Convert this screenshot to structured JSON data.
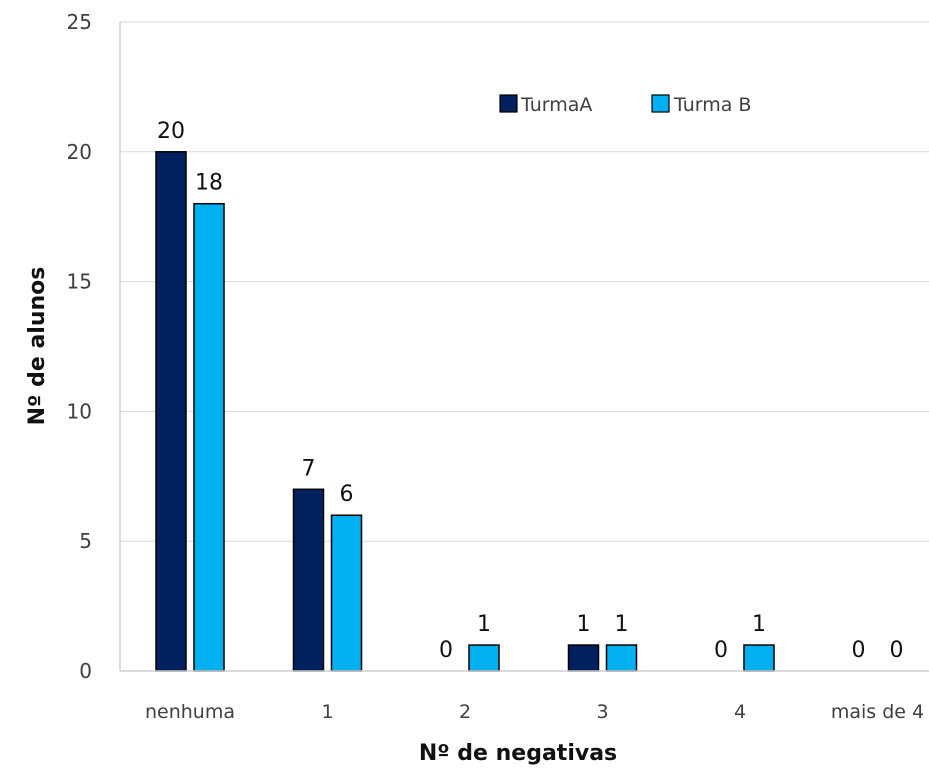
{
  "chart_data": {
    "type": "bar",
    "title": "",
    "xlabel": "Nº de negativas",
    "ylabel": "Nº de alunos",
    "ylim": [
      0,
      25
    ],
    "yticks": [
      0,
      5,
      10,
      15,
      20,
      25
    ],
    "grid": true,
    "legend_position": "top-right",
    "categories": [
      "nenhuma",
      "1",
      "2",
      "3",
      "4",
      "mais de 4"
    ],
    "series": [
      {
        "name": "TurmaA",
        "color": "#002060",
        "values": [
          20,
          7,
          0,
          1,
          0,
          0
        ]
      },
      {
        "name": "Turma B",
        "color": "#00B0F0",
        "values": [
          18,
          6,
          1,
          1,
          1,
          0
        ]
      }
    ]
  }
}
